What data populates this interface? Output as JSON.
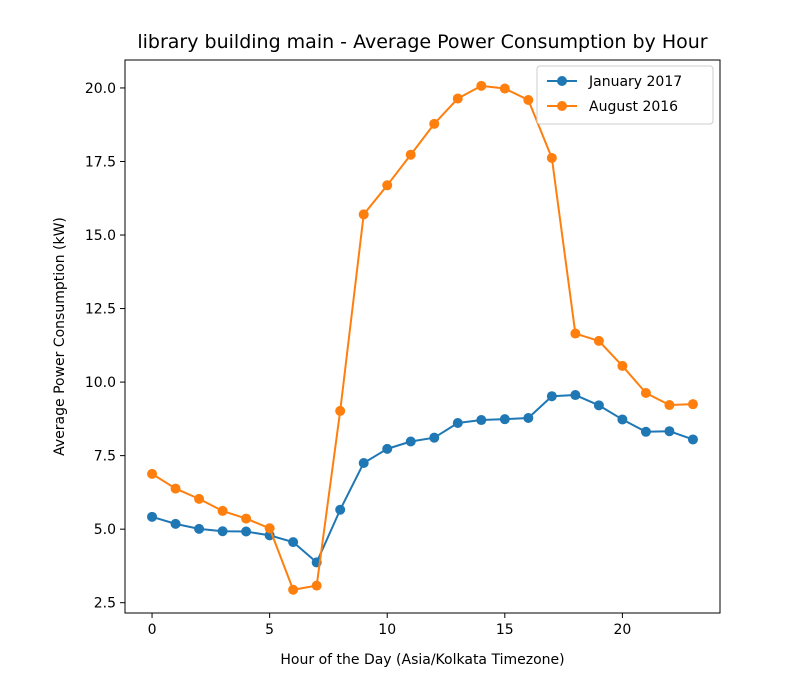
{
  "chart_data": {
    "type": "line",
    "title": "library building main - Average Power Consumption by Hour",
    "xlabel": "Hour of the Day (Asia/Kolkata Timezone)",
    "ylabel": "Average Power Consumption (kW)",
    "xlim": [
      -1.15,
      24.15
    ],
    "ylim": [
      2.15,
      20.95
    ],
    "xticks": [
      0,
      5,
      10,
      15,
      20
    ],
    "xtick_labels": [
      "0",
      "5",
      "10",
      "15",
      "20"
    ],
    "yticks": [
      2.5,
      5.0,
      7.5,
      10.0,
      12.5,
      15.0,
      17.5,
      20.0
    ],
    "ytick_labels": [
      "2.5",
      "5.0",
      "7.5",
      "10.0",
      "12.5",
      "15.0",
      "17.5",
      "20.0"
    ],
    "grid": false,
    "legend_position": "upper-right",
    "x": [
      0,
      1,
      2,
      3,
      4,
      5,
      6,
      7,
      8,
      9,
      10,
      11,
      12,
      13,
      14,
      15,
      16,
      17,
      18,
      19,
      20,
      21,
      22,
      23
    ],
    "series": [
      {
        "name": "January 2017",
        "color": "#1f77b4",
        "values": [
          5.42,
          5.18,
          5.01,
          4.93,
          4.92,
          4.79,
          4.56,
          3.87,
          5.66,
          7.25,
          7.73,
          7.98,
          8.11,
          8.61,
          8.71,
          8.74,
          8.78,
          9.52,
          9.56,
          9.21,
          8.73,
          8.31,
          8.33,
          8.05
        ]
      },
      {
        "name": "August 2016",
        "color": "#ff7f0e",
        "values": [
          6.88,
          6.38,
          6.03,
          5.62,
          5.36,
          5.03,
          2.94,
          3.08,
          9.02,
          15.7,
          16.69,
          17.73,
          18.78,
          19.64,
          20.07,
          19.98,
          19.59,
          17.62,
          11.65,
          11.4,
          10.55,
          9.63,
          9.22,
          9.25
        ]
      }
    ]
  }
}
